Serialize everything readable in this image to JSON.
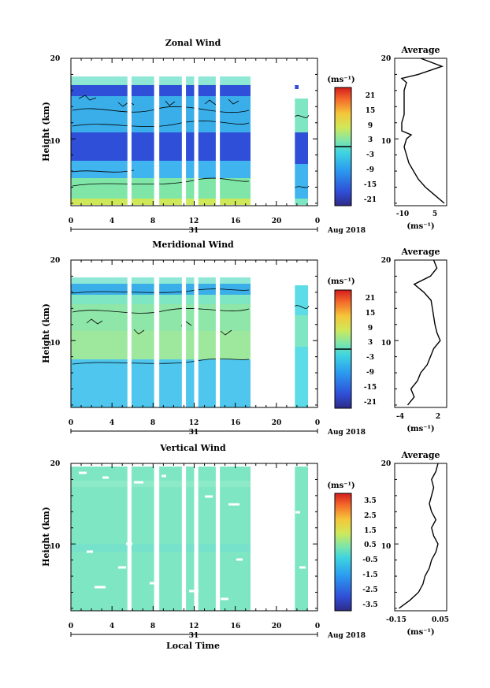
{
  "figure": {
    "xlabel": "Local Time",
    "ylabel": "Height (km)",
    "date_label": "Aug 2018",
    "day_label": "31",
    "average_title": "Average",
    "unit_label": "(ms⁻¹)"
  },
  "chart_data": [
    {
      "type": "heatmap",
      "title": "Zonal Wind",
      "xlabel": "",
      "ylabel": "Height (km)",
      "x_ticks": [
        "0",
        "4",
        "8",
        "12",
        "16",
        "20",
        "0"
      ],
      "xlim_hours": [
        0,
        24
      ],
      "y_ticks": [
        "20",
        "10"
      ],
      "ylim_km": [
        1.7,
        20
      ],
      "colorbar": {
        "unit": "(ms⁻¹)",
        "range": [
          -24,
          24
        ],
        "ticks": [
          "21",
          "15",
          "9",
          "3",
          "-3",
          "-9",
          "-15",
          "-21"
        ],
        "zero_line": true
      },
      "data_gaps_hours": [
        [
          5.5,
          5.9
        ],
        [
          8.1,
          8.6
        ],
        [
          10.8,
          11.2
        ],
        [
          12.0,
          12.4
        ],
        [
          14.1,
          14.5
        ],
        [
          17.7,
          21.8
        ]
      ],
      "contours": true,
      "profile": {
        "title": "Average",
        "x_ticks": [
          "-10",
          "5"
        ],
        "xlim": [
          -15,
          7
        ],
        "y_ticks": [
          "20",
          "10"
        ],
        "xlabel": "(ms⁻¹)",
        "height_km": [
          2,
          3,
          4,
          5,
          6,
          7,
          8,
          9,
          10,
          10.5,
          11,
          12,
          13,
          14,
          15,
          16,
          17,
          17.5,
          18,
          19,
          20
        ],
        "value": [
          6,
          2,
          -2,
          -5,
          -7,
          -9,
          -10,
          -11,
          -10,
          -8,
          -12,
          -12,
          -11,
          -11,
          -11,
          -11,
          -10,
          -12,
          -5,
          5,
          -4
        ]
      }
    },
    {
      "type": "heatmap",
      "title": "Meridional Wind",
      "xlabel": "",
      "ylabel": "Height (km)",
      "x_ticks": [
        "0",
        "4",
        "8",
        "12",
        "16",
        "20",
        "0"
      ],
      "xlim_hours": [
        0,
        24
      ],
      "y_ticks": [
        "20",
        "10"
      ],
      "ylim_km": [
        1.7,
        20
      ],
      "colorbar": {
        "unit": "(ms⁻¹)",
        "range": [
          -24,
          24
        ],
        "ticks": [
          "21",
          "15",
          "9",
          "3",
          "-3",
          "-9",
          "-15",
          "-21"
        ],
        "zero_line": true
      },
      "data_gaps_hours": [
        [
          5.5,
          5.9
        ],
        [
          8.1,
          8.6
        ],
        [
          10.8,
          11.2
        ],
        [
          12.0,
          12.4
        ],
        [
          14.1,
          14.5
        ],
        [
          17.7,
          21.8
        ]
      ],
      "contours": true,
      "profile": {
        "title": "Average",
        "x_ticks": [
          "-4",
          "2"
        ],
        "xlim": [
          -5,
          3
        ],
        "y_ticks": [
          "20",
          "10"
        ],
        "xlabel": "(ms⁻¹)",
        "height_km": [
          2,
          3,
          4,
          5,
          6,
          7,
          8,
          9,
          10,
          11,
          12,
          13,
          14,
          15,
          16,
          17,
          18,
          19,
          20
        ],
        "value": [
          -3,
          -2,
          -2.5,
          -1.5,
          -1,
          0,
          0.5,
          1,
          2,
          1.5,
          1.2,
          1.0,
          0.8,
          0.6,
          -0.5,
          -2,
          0.5,
          1.5,
          1
        ]
      }
    },
    {
      "type": "heatmap",
      "title": "Vertical Wind",
      "xlabel": "Local Time",
      "ylabel": "Height (km)",
      "x_ticks": [
        "0",
        "4",
        "8",
        "12",
        "16",
        "20",
        "0"
      ],
      "xlim_hours": [
        0,
        24
      ],
      "y_ticks": [
        "20",
        "10"
      ],
      "ylim_km": [
        1.7,
        20
      ],
      "colorbar": {
        "unit": "(ms⁻¹)",
        "range": [
          -4,
          4
        ],
        "ticks": [
          "3.5",
          "2.5",
          "1.5",
          "0.5",
          "-0.5",
          "-1.5",
          "-2.5",
          "-3.5"
        ],
        "zero_line": false
      },
      "data_gaps_hours": [
        [
          5.5,
          5.9
        ],
        [
          8.1,
          8.6
        ],
        [
          10.8,
          11.2
        ],
        [
          12.0,
          12.4
        ],
        [
          14.1,
          14.5
        ],
        [
          17.7,
          21.8
        ]
      ],
      "contours": false,
      "profile": {
        "title": "Average",
        "x_ticks": [
          "-0.15",
          "0.05"
        ],
        "xlim": [
          -0.17,
          0.07
        ],
        "y_ticks": [
          "20",
          "10"
        ],
        "xlabel": "(ms⁻¹)",
        "height_km": [
          2,
          3,
          4,
          5,
          6,
          7,
          8,
          9,
          10,
          11,
          12,
          13,
          14,
          15,
          16,
          17,
          18,
          19,
          20
        ],
        "value": [
          -0.15,
          -0.1,
          -0.06,
          -0.04,
          -0.03,
          -0.01,
          0.0,
          0.02,
          0.03,
          0.01,
          0.0,
          0.02,
          0.0,
          -0.01,
          0.0,
          0.01,
          0.0,
          0.02,
          0.03
        ]
      }
    }
  ]
}
